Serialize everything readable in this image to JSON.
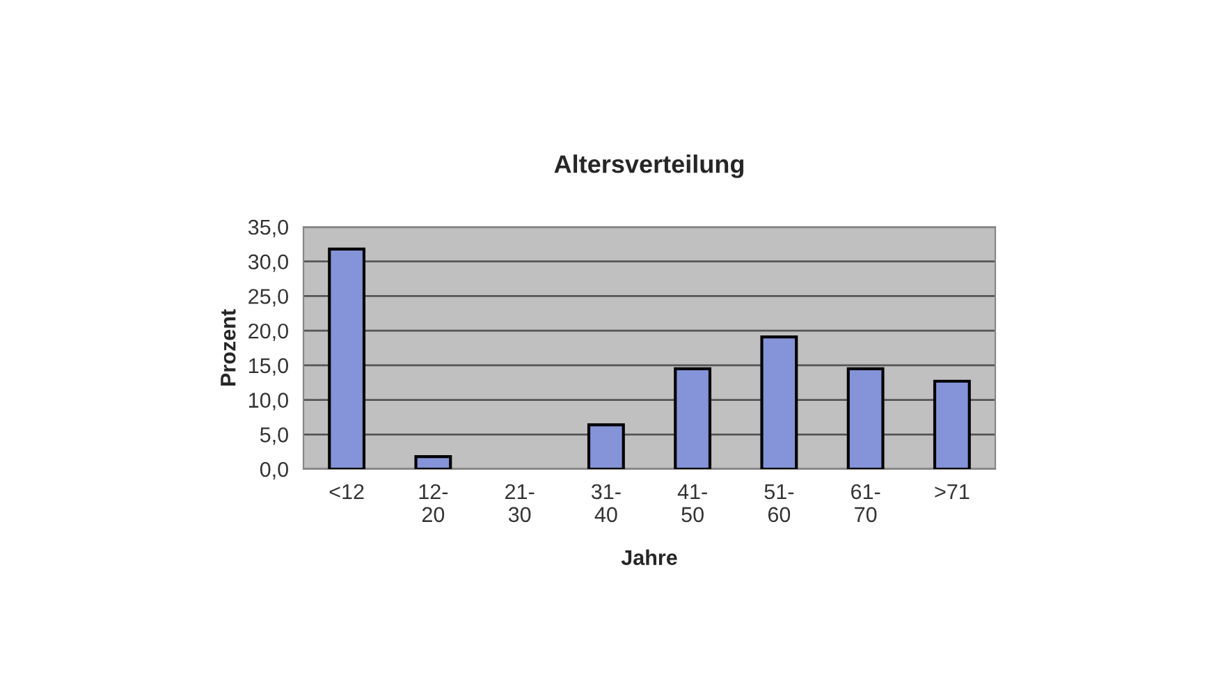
{
  "chart_data": {
    "type": "bar",
    "title": "Altersverteilung",
    "xlabel": "Jahre",
    "ylabel": "Prozent",
    "categories": [
      "<12",
      "12-\n20",
      "21-\n30",
      "31-\n40",
      "41-\n50",
      "51-\n60",
      "61-\n70",
      ">71"
    ],
    "values": [
      31.8,
      1.8,
      0,
      6.4,
      14.5,
      19.1,
      14.5,
      12.7
    ],
    "color": "#8594d8",
    "ylim": [
      0,
      35
    ],
    "yticks": [
      {
        "value": 0,
        "label": "0,0"
      },
      {
        "value": 5,
        "label": "5,0"
      },
      {
        "value": 10,
        "label": "10,0"
      },
      {
        "value": 15,
        "label": "15,0"
      },
      {
        "value": 20,
        "label": "20,0"
      },
      {
        "value": 25,
        "label": "25,0"
      },
      {
        "value": 30,
        "label": "30,0"
      },
      {
        "value": 35,
        "label": "35,0"
      }
    ],
    "grid": "y",
    "legend": false
  }
}
